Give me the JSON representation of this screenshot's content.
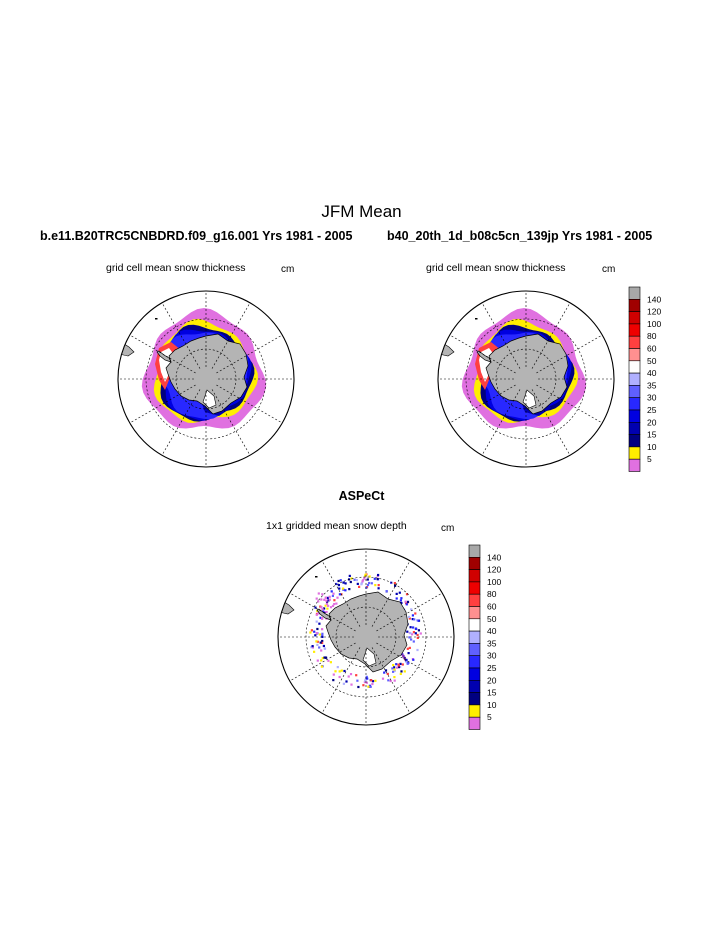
{
  "page_title": "JFM Mean",
  "panels": {
    "left": {
      "title": "b.e11.B20TRC5CNBDRD.f09_g16.001  Yrs 1981 - 2005",
      "subtitle": "grid cell mean snow thickness",
      "unit": "cm"
    },
    "right": {
      "title": "b40_20th_1d_b08c5cn_139jp  Yrs 1981 - 2005",
      "subtitle": "grid cell mean snow thickness",
      "unit": "cm"
    },
    "bottom": {
      "title": "ASPeCt",
      "subtitle": "1x1 gridded mean snow depth",
      "unit": "cm"
    }
  },
  "chart_data": {
    "type": "heatmap",
    "projection": "south polar stereographic",
    "colorbar": {
      "levels": [
        "140",
        "120",
        "100",
        "80",
        "60",
        "50",
        "40",
        "35",
        "30",
        "25",
        "20",
        "15",
        "10",
        "5"
      ],
      "colors": [
        "#a8a8a8",
        "#a00000",
        "#d00000",
        "#ee0000",
        "#ff4040",
        "#ff9090",
        "#ffffff",
        "#b0b0ff",
        "#6060ff",
        "#2828ff",
        "#0000e0",
        "#0000b0",
        "#000080",
        "#ffee00",
        "#e070e0"
      ]
    }
  }
}
